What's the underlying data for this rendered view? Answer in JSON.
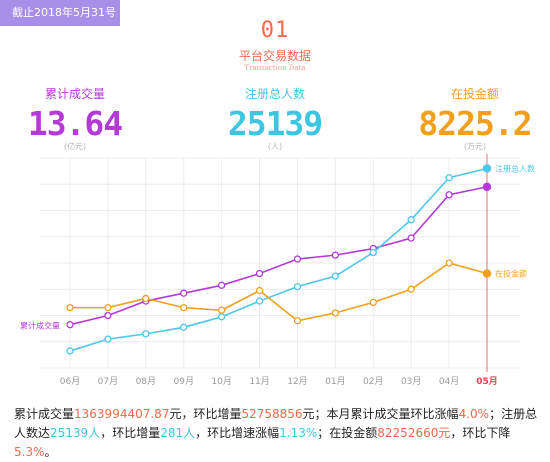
{
  "header": {
    "date_badge": "截止2018年5月31号",
    "section_number": "01",
    "section_title": "平台交易数据",
    "section_subtitle": "Transaction Data"
  },
  "stats": [
    {
      "label": "累计成交量",
      "value": "13.64",
      "unit": "(亿元)",
      "color": "#b43ad8"
    },
    {
      "label": "注册总人数",
      "value": "25139",
      "unit": "(人)",
      "color": "#3ec6e0"
    },
    {
      "label": "在投金额",
      "value": "8225.2",
      "unit": "(万元)",
      "color": "#f0a01e"
    }
  ],
  "chart_data": {
    "type": "line",
    "categories": [
      "06月",
      "07月",
      "08月",
      "09月",
      "10月",
      "11月",
      "12月",
      "01月",
      "02月",
      "03月",
      "04月",
      "05月"
    ],
    "highlight_category": "05月",
    "series": [
      {
        "name": "累计成交量",
        "color": "#b43ad8",
        "values": [
          33,
          40,
          51,
          57,
          63,
          72,
          83,
          86,
          91,
          99,
          132,
          138
        ]
      },
      {
        "name": "注册总人数",
        "color": "#4ec7e6",
        "values": [
          13,
          22,
          26,
          31,
          39,
          51,
          62,
          70,
          88,
          113,
          145,
          152
        ]
      },
      {
        "name": "在投金额",
        "color": "#f0a01e",
        "values": [
          46,
          46,
          53,
          46,
          44,
          59,
          36,
          42,
          50,
          60,
          80,
          72
        ]
      }
    ],
    "grid": true
  },
  "footer": {
    "p1": "累计成交量",
    "v1": "1363994407.87",
    "p2": "元，环比增量",
    "v2": "52758856",
    "p3": "元；本月累计成交量环比涨幅",
    "v3": "4.0%",
    "p4": "；注册总人数达",
    "v4": "25139人",
    "p5": "，环比增量",
    "v5": "281人",
    "p6": "，环比增速涨幅",
    "v6": "1.13%",
    "p7": "；在投金额",
    "v7": "82252660元",
    "p8": "，环比下降",
    "v8": "5.3%",
    "p9": "。"
  }
}
